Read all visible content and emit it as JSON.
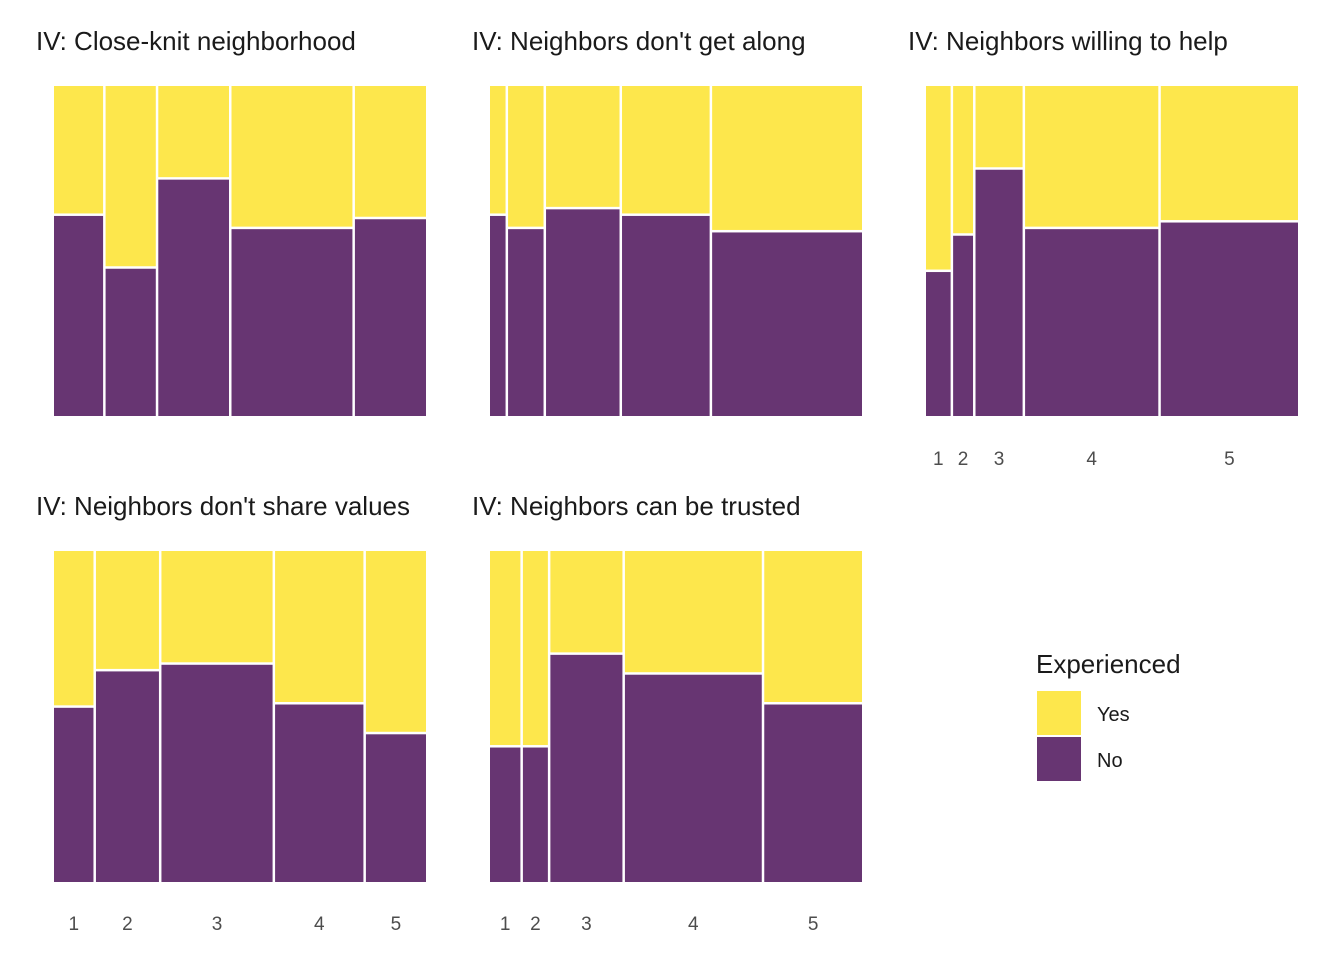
{
  "chart_data": {
    "type": "mosaic",
    "colors": {
      "Yes": "#FDE74C",
      "No": "#673572"
    },
    "legend": {
      "title": "Experienced",
      "entries": [
        "Yes",
        "No"
      ],
      "placement": "bottom-right"
    },
    "panels": [
      {
        "title": "IV: Close-knit neighborhood",
        "categories": [
          "1",
          "2",
          "3",
          "4",
          "5"
        ],
        "show_x_labels": false,
        "widths": [
          0.134,
          0.137,
          0.193,
          0.33,
          0.194
        ],
        "no_share": [
          0.61,
          0.45,
          0.72,
          0.57,
          0.6
        ]
      },
      {
        "title": "IV: Neighbors don't get along",
        "categories": [
          "1",
          "2",
          "3",
          "4",
          "5"
        ],
        "show_x_labels": false,
        "widths": [
          0.043,
          0.098,
          0.203,
          0.242,
          0.414
        ],
        "no_share": [
          0.61,
          0.57,
          0.63,
          0.61,
          0.56
        ]
      },
      {
        "title": "IV: Neighbors willing to help",
        "categories": [
          "1",
          "2",
          "3",
          "4",
          "5"
        ],
        "show_x_labels": true,
        "widths": [
          0.068,
          0.055,
          0.13,
          0.368,
          0.379
        ],
        "no_share": [
          0.44,
          0.55,
          0.75,
          0.57,
          0.59
        ]
      },
      {
        "title": "IV: Neighbors don't share values",
        "categories": [
          "1",
          "2",
          "3",
          "4",
          "5"
        ],
        "show_x_labels": true,
        "widths": [
          0.109,
          0.174,
          0.307,
          0.244,
          0.166
        ],
        "no_share": [
          0.53,
          0.64,
          0.66,
          0.54,
          0.45
        ]
      },
      {
        "title": "IV: Neighbors can be trusted",
        "categories": [
          "1",
          "2",
          "3",
          "4",
          "5"
        ],
        "show_x_labels": true,
        "widths": [
          0.084,
          0.069,
          0.199,
          0.378,
          0.27
        ],
        "no_share": [
          0.41,
          0.41,
          0.69,
          0.63,
          0.54
        ]
      }
    ]
  }
}
